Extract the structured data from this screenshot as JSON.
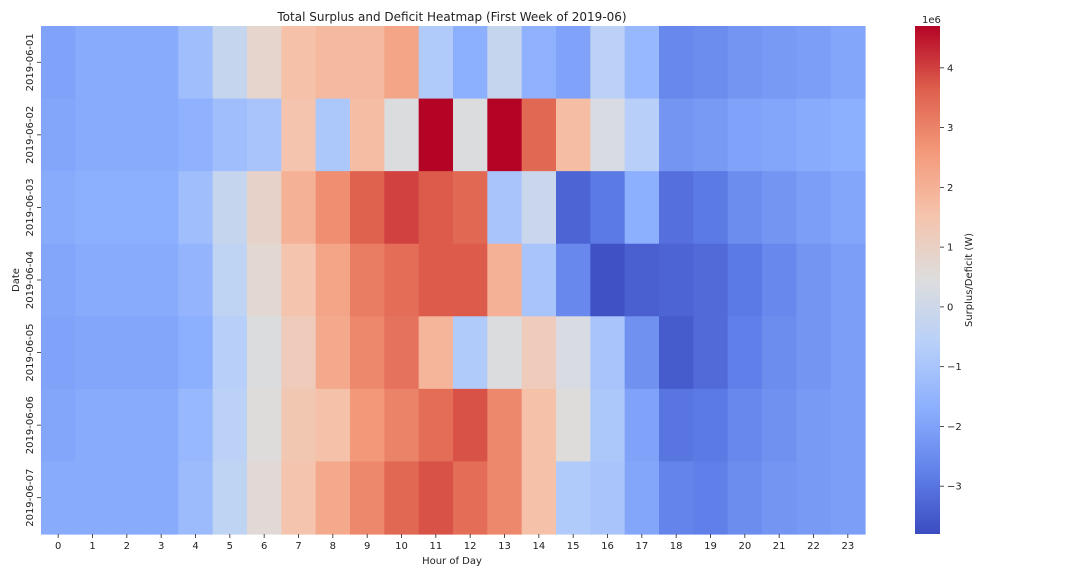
{
  "chart_data": {
    "type": "heatmap",
    "title": "Total Surplus and Deficit Heatmap (First Week of 2019-06)",
    "xlabel": "Hour of Day",
    "ylabel": "Date",
    "x_categories": [
      "0",
      "1",
      "2",
      "3",
      "4",
      "5",
      "6",
      "7",
      "8",
      "9",
      "10",
      "11",
      "12",
      "13",
      "14",
      "15",
      "16",
      "17",
      "18",
      "19",
      "20",
      "21",
      "22",
      "23"
    ],
    "y_categories": [
      "2019-06-01",
      "2019-06-02",
      "2019-06-03",
      "2019-06-04",
      "2019-06-05",
      "2019-06-06",
      "2019-06-07"
    ],
    "values": [
      [
        -2.0,
        -1.8,
        -1.8,
        -1.8,
        -1.2,
        -0.2,
        0.8,
        1.6,
        1.8,
        1.8,
        2.3,
        -0.8,
        -1.7,
        -0.2,
        -1.6,
        -2.0,
        -0.5,
        -1.4,
        -2.6,
        -2.5,
        -2.3,
        -2.2,
        -2.1,
        -1.9
      ],
      [
        -1.9,
        -1.8,
        -1.8,
        -1.8,
        -1.6,
        -1.2,
        -1.0,
        1.5,
        -0.9,
        1.7,
        0.4,
        4.8,
        0.4,
        4.8,
        3.5,
        1.7,
        0.3,
        -0.6,
        -2.3,
        -2.2,
        -2.0,
        -1.9,
        -1.8,
        -1.7
      ],
      [
        -1.8,
        -1.7,
        -1.7,
        -1.7,
        -1.2,
        -0.2,
        0.9,
        2.0,
        2.8,
        3.6,
        4.0,
        3.7,
        3.5,
        -1.0,
        -0.1,
        -3.3,
        -2.9,
        -1.7,
        -3.1,
        -2.9,
        -2.5,
        -2.3,
        -2.1,
        -1.9
      ],
      [
        -1.9,
        -1.8,
        -1.8,
        -1.8,
        -1.5,
        -0.4,
        0.7,
        1.5,
        2.3,
        3.1,
        3.4,
        3.7,
        3.7,
        2.0,
        -1.0,
        -2.6,
        -3.7,
        -3.4,
        -3.3,
        -3.2,
        -2.9,
        -2.6,
        -2.3,
        -2.1
      ],
      [
        -2.0,
        -1.9,
        -1.9,
        -1.9,
        -1.7,
        -0.6,
        0.4,
        1.2,
        2.2,
        2.9,
        3.3,
        1.9,
        -0.8,
        0.4,
        1.2,
        0.3,
        -1.0,
        -2.4,
        -3.5,
        -3.2,
        -2.8,
        -2.5,
        -2.3,
        -2.1
      ],
      [
        -1.9,
        -1.8,
        -1.8,
        -1.8,
        -1.4,
        -0.5,
        0.5,
        1.4,
        1.6,
        2.6,
        3.0,
        3.4,
        3.8,
        2.9,
        1.6,
        0.5,
        -0.9,
        -2.0,
        -3.0,
        -2.9,
        -2.6,
        -2.4,
        -2.2,
        -2.1
      ],
      [
        -1.8,
        -1.8,
        -1.8,
        -1.8,
        -1.3,
        -0.4,
        0.6,
        1.5,
        2.2,
        2.9,
        3.5,
        3.8,
        3.4,
        2.9,
        1.6,
        -0.8,
        -1.0,
        -1.9,
        -2.7,
        -2.8,
        -2.5,
        -2.3,
        -2.2,
        -2.1
      ]
    ],
    "colormap": "coolwarm",
    "color_range": [
      -3.8,
      4.7
    ],
    "colorbar_label": "Surplus/Deficit (W)",
    "colorbar_scale_text": "1e6",
    "colorbar_ticks": [
      "−3",
      "−2",
      "−1",
      "0",
      "1",
      "2",
      "3",
      "4"
    ],
    "grid": false,
    "legend": "colorbar-right"
  }
}
